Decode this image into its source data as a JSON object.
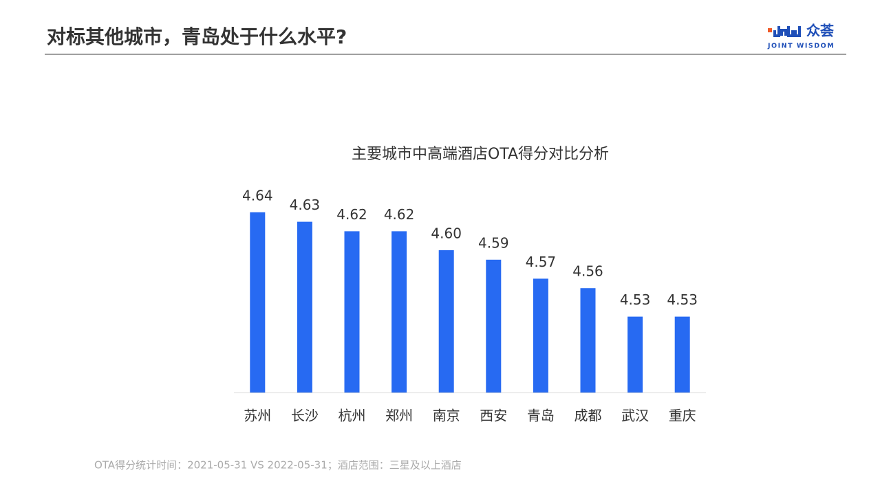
{
  "header": {
    "title": "对标其他城市，青岛处于什么水平?",
    "logo_cn": "众荟",
    "logo_en": "JOINT WISDOM"
  },
  "chart_data": {
    "type": "bar",
    "title": "主要城市中高端酒店OTA得分对比分析",
    "categories": [
      "苏州",
      "长沙",
      "杭州",
      "郑州",
      "南京",
      "西安",
      "青岛",
      "成都",
      "武汉",
      "重庆"
    ],
    "values": [
      4.64,
      4.63,
      4.62,
      4.62,
      4.6,
      4.59,
      4.57,
      4.56,
      4.53,
      4.53
    ],
    "value_labels": [
      "4.64",
      "4.63",
      "4.62",
      "4.62",
      "4.60",
      "4.59",
      "4.57",
      "4.56",
      "4.53",
      "4.53"
    ],
    "color": "#276af2",
    "ylim": [
      4.45,
      4.65
    ]
  },
  "footnote": "OTA得分统计时间：2021-05-31  VS  2022-05-31；酒店范围：三星及以上酒店"
}
